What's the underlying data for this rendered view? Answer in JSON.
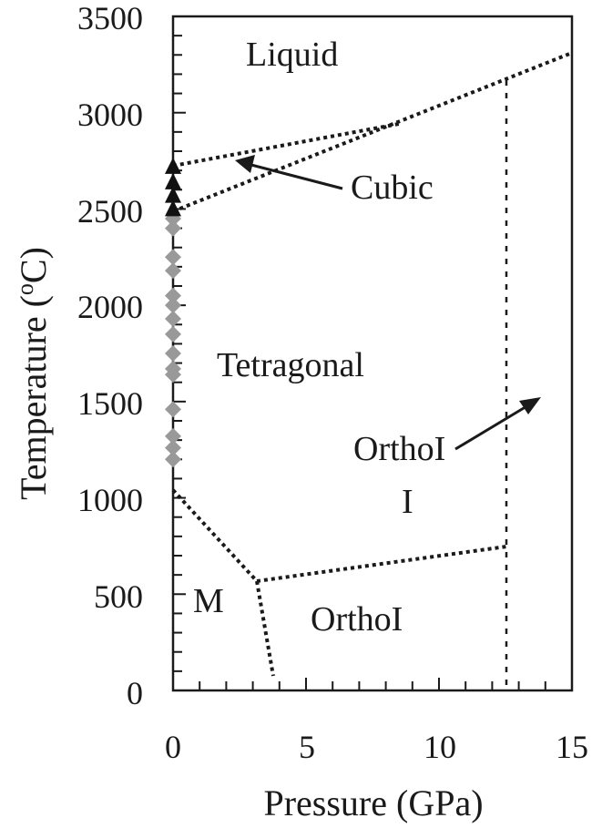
{
  "chart_data": {
    "type": "scatter",
    "title": "",
    "xlabel": "Pressure (GPa)",
    "ylabel": "Temperature (oC)",
    "xlim": [
      0,
      15
    ],
    "ylim": [
      0,
      3500
    ],
    "xticks": [
      "0",
      "5",
      "10",
      "15"
    ],
    "yticks": [
      "0",
      "500",
      "1000",
      "1500",
      "2000",
      "2500",
      "3000",
      "3500"
    ],
    "grid": false,
    "series": [
      {
        "name": "Tetragonal data (gray diamonds)",
        "marker": "diamond",
        "color": "#999999",
        "x": [
          0,
          0,
          0,
          0,
          0,
          0,
          0,
          0,
          0,
          0,
          0,
          0,
          0,
          0,
          0
        ],
        "y": [
          2450,
          2400,
          2250,
          2180,
          2050,
          2000,
          1930,
          1850,
          1750,
          1670,
          1640,
          1460,
          1320,
          1260,
          1200
        ]
      },
      {
        "name": "Cubic data (black triangles)",
        "marker": "triangle",
        "color": "#111111",
        "x": [
          0,
          0,
          0,
          0
        ],
        "y": [
          2720,
          2640,
          2570,
          2500
        ]
      }
    ],
    "phase_boundaries": [
      {
        "name": "liquid-boundary",
        "points": [
          [
            0,
            2490
          ],
          [
            15,
            3310
          ]
        ]
      },
      {
        "name": "cubic-upper",
        "points": [
          [
            0,
            2730
          ],
          [
            8.5,
            2950
          ]
        ]
      },
      {
        "name": "monoclinic-tetragonal",
        "points": [
          [
            0,
            1050
          ],
          [
            3.1,
            570
          ]
        ]
      },
      {
        "name": "monoclinic-orthoI",
        "points": [
          [
            3.1,
            570
          ],
          [
            3.8,
            80
          ]
        ]
      },
      {
        "name": "tetragonal-orthoI",
        "points": [
          [
            3.1,
            570
          ],
          [
            12.6,
            750
          ]
        ]
      },
      {
        "name": "orthoII-vertical",
        "points": [
          [
            12.6,
            0
          ],
          [
            12.6,
            3180
          ]
        ]
      }
    ],
    "annotations": [
      {
        "text": "Liquid",
        "x": 4.8,
        "y": 3300
      },
      {
        "text": "Cubic",
        "x": 9.2,
        "y": 2620,
        "arrow_to": [
          2.4,
          2760
        ]
      },
      {
        "text": "Tetragonal",
        "x": 4.8,
        "y": 1700
      },
      {
        "text": "OrthoI",
        "x": 8.8,
        "y": 1270,
        "arrow_to": [
          13.8,
          1540
        ]
      },
      {
        "text": "I",
        "x": 8.8,
        "y": 1010
      },
      {
        "text": "M",
        "x": 1.5,
        "y": 490
      },
      {
        "text": "OrthoI",
        "x": 6.5,
        "y": 390
      }
    ]
  },
  "labels": {
    "liquid": "Liquid",
    "cubic": "Cubic",
    "tetragonal": "Tetragonal",
    "ortho_upper": "OrthoI",
    "ortho_upper_line2": "I",
    "monoclinic": "M",
    "ortho_lower": "OrthoI"
  },
  "axes": {
    "xlabel": "Pressure (GPa)",
    "ylabel_main": "Temperature (",
    "ylabel_sup": "o",
    "ylabel_end": "C)",
    "xticks": [
      "0",
      "5",
      "10",
      "15"
    ],
    "yticks": [
      "3500",
      "3000",
      "2500",
      "2000",
      "1500",
      "1000",
      "500",
      "0"
    ]
  }
}
